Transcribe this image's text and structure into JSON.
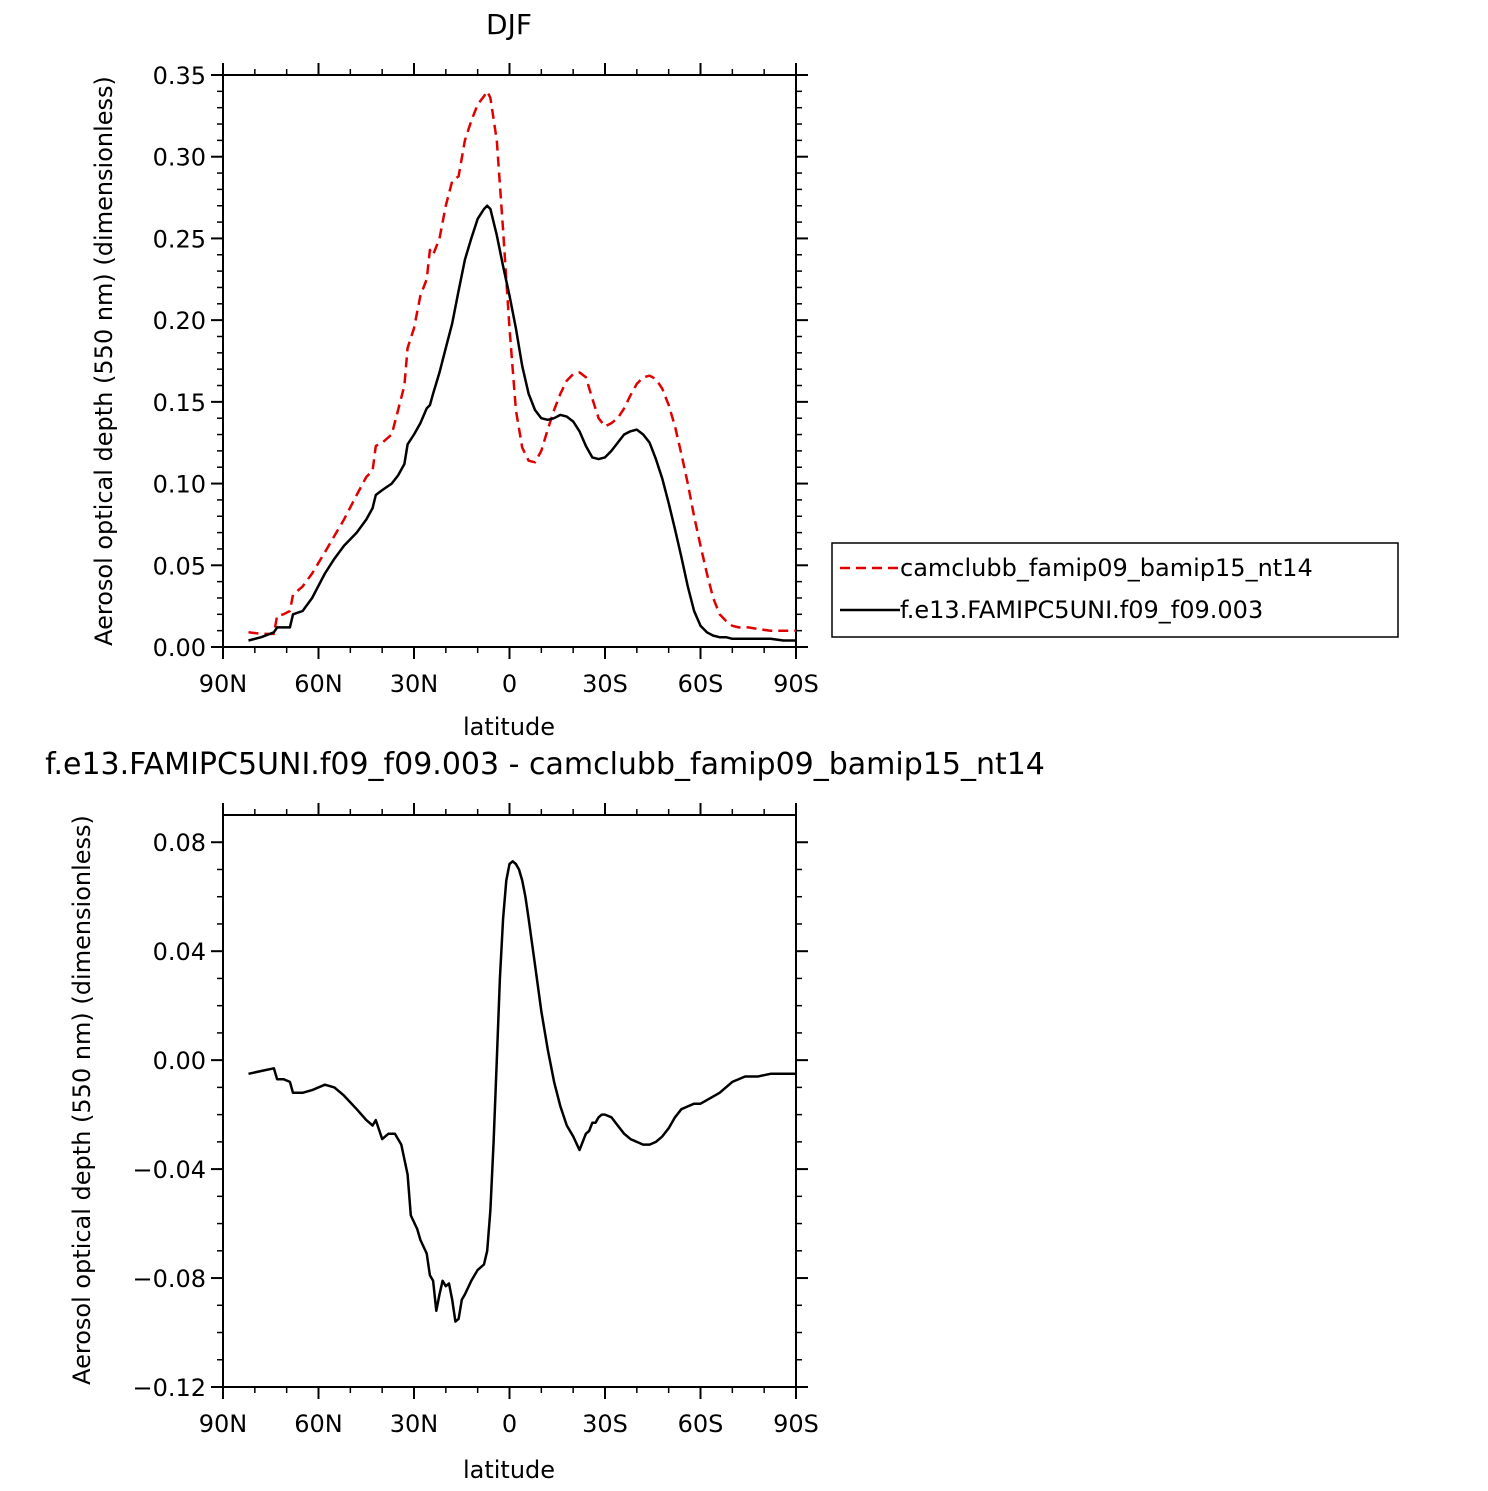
{
  "chart_data": [
    {
      "type": "line",
      "title": "DJF",
      "xlabel": "latitude",
      "ylabel": "Aerosol optical depth (550 nm) (dimensionless)",
      "xlim": [
        90,
        -90
      ],
      "ylim": [
        0.0,
        0.35
      ],
      "xticks": [
        {
          "value": 90,
          "label": "90N"
        },
        {
          "value": 60,
          "label": "60N"
        },
        {
          "value": 30,
          "label": "30N"
        },
        {
          "value": 0,
          "label": "0"
        },
        {
          "value": -30,
          "label": "30S"
        },
        {
          "value": -60,
          "label": "60S"
        },
        {
          "value": -90,
          "label": "90S"
        }
      ],
      "yticks": [
        {
          "value": 0.0,
          "label": "0.00"
        },
        {
          "value": 0.05,
          "label": "0.05"
        },
        {
          "value": 0.1,
          "label": "0.10"
        },
        {
          "value": 0.15,
          "label": "0.15"
        },
        {
          "value": 0.2,
          "label": "0.20"
        },
        {
          "value": 0.25,
          "label": "0.25"
        },
        {
          "value": 0.3,
          "label": "0.30"
        },
        {
          "value": 0.35,
          "label": "0.35"
        }
      ],
      "legend": "right",
      "series": [
        {
          "name": "camclubb_famip09_bamip15_nt14",
          "color": "#e00000",
          "dash": true,
          "x": [
            82,
            78,
            74,
            73,
            71,
            69,
            68,
            65,
            62,
            58,
            55,
            52,
            48,
            45,
            43,
            42,
            40,
            37,
            35,
            33,
            32,
            30,
            28,
            26,
            25,
            24,
            22,
            20,
            18,
            16,
            14,
            12,
            10,
            8,
            7,
            6,
            4,
            2,
            0,
            -2,
            -4,
            -6,
            -8,
            -10,
            -12,
            -14,
            -16,
            -18,
            -20,
            -22,
            -24,
            -26,
            -28,
            -30,
            -32,
            -34,
            -36,
            -38,
            -40,
            -42,
            -44,
            -46,
            -48,
            -50,
            -52,
            -54,
            -56,
            -58,
            -60,
            -62,
            -64,
            -66,
            -68,
            -70,
            -72,
            -75,
            -78,
            -82,
            -86,
            -90
          ],
          "y": [
            0.009,
            0.008,
            0.008,
            0.019,
            0.02,
            0.022,
            0.032,
            0.037,
            0.045,
            0.058,
            0.068,
            0.078,
            0.093,
            0.104,
            0.108,
            0.123,
            0.125,
            0.13,
            0.145,
            0.16,
            0.183,
            0.195,
            0.215,
            0.225,
            0.243,
            0.24,
            0.25,
            0.27,
            0.285,
            0.288,
            0.31,
            0.322,
            0.332,
            0.337,
            0.34,
            0.336,
            0.31,
            0.255,
            0.195,
            0.145,
            0.122,
            0.114,
            0.113,
            0.12,
            0.133,
            0.145,
            0.155,
            0.163,
            0.167,
            0.168,
            0.165,
            0.152,
            0.14,
            0.135,
            0.137,
            0.14,
            0.146,
            0.154,
            0.161,
            0.165,
            0.166,
            0.164,
            0.158,
            0.148,
            0.135,
            0.118,
            0.1,
            0.08,
            0.062,
            0.045,
            0.03,
            0.02,
            0.016,
            0.013,
            0.012,
            0.012,
            0.011,
            0.01,
            0.01,
            0.01
          ]
        },
        {
          "name": "f.e13.FAMIPC5UNI.f09_f09.003",
          "color": "#000000",
          "dash": false,
          "x": [
            82,
            78,
            74,
            73,
            71,
            69,
            68,
            65,
            62,
            58,
            55,
            52,
            48,
            45,
            43,
            42,
            40,
            37,
            35,
            33,
            32,
            30,
            28,
            26,
            25,
            24,
            22,
            20,
            18,
            16,
            14,
            12,
            10,
            8,
            7,
            6,
            4,
            2,
            0,
            -2,
            -4,
            -6,
            -8,
            -10,
            -12,
            -14,
            -16,
            -18,
            -20,
            -22,
            -24,
            -26,
            -28,
            -30,
            -32,
            -34,
            -36,
            -38,
            -40,
            -42,
            -44,
            -46,
            -48,
            -50,
            -52,
            -54,
            -56,
            -58,
            -60,
            -62,
            -64,
            -66,
            -68,
            -70,
            -72,
            -75,
            -78,
            -82,
            -86,
            -90
          ],
          "y": [
            0.004,
            0.006,
            0.009,
            0.012,
            0.012,
            0.012,
            0.02,
            0.022,
            0.03,
            0.045,
            0.054,
            0.062,
            0.07,
            0.078,
            0.085,
            0.093,
            0.096,
            0.1,
            0.105,
            0.112,
            0.124,
            0.13,
            0.137,
            0.146,
            0.148,
            0.155,
            0.168,
            0.183,
            0.198,
            0.218,
            0.237,
            0.25,
            0.262,
            0.268,
            0.27,
            0.268,
            0.252,
            0.233,
            0.215,
            0.195,
            0.172,
            0.155,
            0.145,
            0.14,
            0.139,
            0.14,
            0.142,
            0.141,
            0.138,
            0.132,
            0.123,
            0.116,
            0.115,
            0.116,
            0.12,
            0.125,
            0.13,
            0.132,
            0.133,
            0.13,
            0.125,
            0.115,
            0.103,
            0.088,
            0.072,
            0.055,
            0.037,
            0.022,
            0.013,
            0.009,
            0.007,
            0.006,
            0.006,
            0.005,
            0.005,
            0.005,
            0.005,
            0.005,
            0.004,
            0.004
          ]
        }
      ]
    },
    {
      "type": "line",
      "title": "f.e13.FAMIPC5UNI.f09_f09.003 - camclubb_famip09_bamip15_nt14",
      "xlabel": "latitude",
      "ylabel": "Aerosol optical depth (550 nm) (dimensionless)",
      "xlim": [
        90,
        -90
      ],
      "ylim": [
        -0.12,
        0.09
      ],
      "xticks": [
        {
          "value": 90,
          "label": "90N"
        },
        {
          "value": 60,
          "label": "60N"
        },
        {
          "value": 30,
          "label": "30N"
        },
        {
          "value": 0,
          "label": "0"
        },
        {
          "value": -30,
          "label": "30S"
        },
        {
          "value": -60,
          "label": "60S"
        },
        {
          "value": -90,
          "label": "90S"
        }
      ],
      "yticks": [
        {
          "value": -0.12,
          "label": "−0.12"
        },
        {
          "value": -0.08,
          "label": "−0.08"
        },
        {
          "value": -0.04,
          "label": "−0.04"
        },
        {
          "value": 0.0,
          "label": "0.00"
        },
        {
          "value": 0.04,
          "label": "0.04"
        },
        {
          "value": 0.08,
          "label": "0.08"
        }
      ],
      "series": [
        {
          "name": "",
          "color": "#000000",
          "dash": false,
          "x": [
            82,
            78,
            74,
            73,
            71,
            69,
            68,
            65,
            62,
            58,
            55,
            52,
            48,
            45,
            43,
            42,
            40,
            38,
            36,
            34,
            32,
            31,
            29,
            28,
            26,
            25,
            24,
            23,
            22,
            21,
            20,
            19,
            18,
            17,
            16,
            15,
            14,
            12,
            10,
            8,
            7,
            6,
            5,
            4,
            3,
            2,
            1,
            0,
            -1,
            -2,
            -3,
            -4,
            -5,
            -6,
            -8,
            -10,
            -12,
            -14,
            -16,
            -18,
            -20,
            -22,
            -24,
            -25,
            -26,
            -27,
            -28,
            -29,
            -30,
            -32,
            -34,
            -36,
            -38,
            -40,
            -42,
            -44,
            -46,
            -48,
            -50,
            -52,
            -54,
            -56,
            -58,
            -60,
            -63,
            -66,
            -70,
            -74,
            -78,
            -82,
            -86,
            -88,
            -90
          ],
          "y": [
            -0.005,
            -0.004,
            -0.003,
            -0.007,
            -0.007,
            -0.008,
            -0.012,
            -0.012,
            -0.011,
            -0.009,
            -0.01,
            -0.013,
            -0.018,
            -0.022,
            -0.024,
            -0.022,
            -0.029,
            -0.027,
            -0.027,
            -0.031,
            -0.042,
            -0.057,
            -0.062,
            -0.066,
            -0.071,
            -0.079,
            -0.081,
            -0.092,
            -0.086,
            -0.081,
            -0.083,
            -0.082,
            -0.088,
            -0.096,
            -0.095,
            -0.088,
            -0.086,
            -0.081,
            -0.077,
            -0.075,
            -0.07,
            -0.055,
            -0.03,
            0.0,
            0.03,
            0.052,
            0.066,
            0.072,
            0.073,
            0.072,
            0.07,
            0.066,
            0.06,
            0.052,
            0.035,
            0.018,
            0.004,
            -0.008,
            -0.017,
            -0.024,
            -0.028,
            -0.033,
            -0.027,
            -0.026,
            -0.023,
            -0.023,
            -0.021,
            -0.02,
            -0.02,
            -0.021,
            -0.024,
            -0.027,
            -0.029,
            -0.03,
            -0.031,
            -0.031,
            -0.03,
            -0.028,
            -0.025,
            -0.021,
            -0.018,
            -0.017,
            -0.016,
            -0.016,
            -0.014,
            -0.012,
            -0.008,
            -0.006,
            -0.006,
            -0.005,
            -0.005,
            -0.005,
            -0.005
          ]
        }
      ]
    }
  ]
}
